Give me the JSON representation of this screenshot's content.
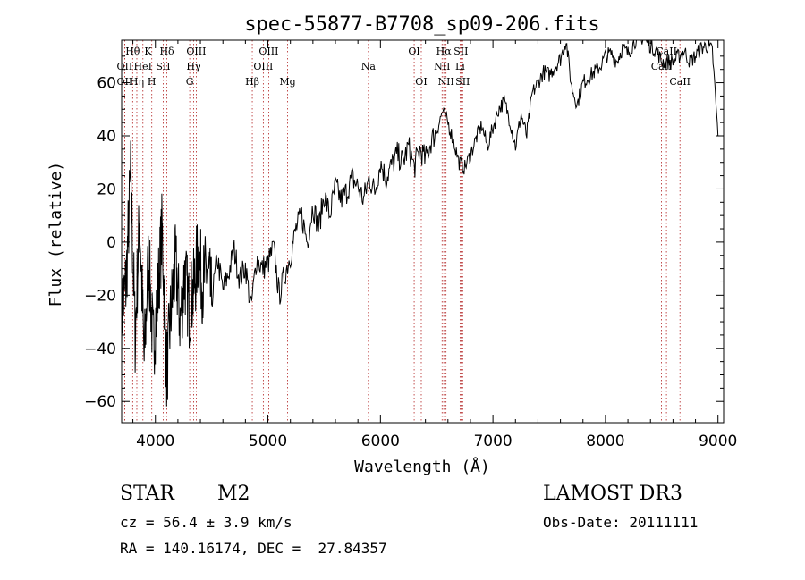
{
  "chart_data": {
    "type": "line",
    "title": "spec-55877-B7708_sp09-206.fits",
    "xlabel": "Wavelength (Å)",
    "ylabel": "Flux (relative)",
    "xlim": [
      3700,
      9050
    ],
    "ylim": [
      -68,
      76
    ],
    "x_ticks": [
      4000,
      5000,
      6000,
      7000,
      8000,
      9000
    ],
    "y_ticks": [
      -60,
      -40,
      -20,
      0,
      20,
      40,
      60
    ],
    "grid": false,
    "series": [
      {
        "name": "spectrum",
        "x": [
          3700,
          3740,
          3780,
          3820,
          3860,
          3900,
          3940,
          3980,
          4020,
          4060,
          4100,
          4140,
          4180,
          4220,
          4260,
          4300,
          4340,
          4380,
          4420,
          4460,
          4500,
          4550,
          4600,
          4650,
          4700,
          4750,
          4800,
          4850,
          4900,
          4950,
          5000,
          5050,
          5100,
          5150,
          5200,
          5250,
          5300,
          5350,
          5400,
          5450,
          5500,
          5550,
          5600,
          5650,
          5700,
          5750,
          5800,
          5850,
          5900,
          5950,
          6000,
          6050,
          6100,
          6150,
          6200,
          6250,
          6300,
          6350,
          6400,
          6450,
          6500,
          6550,
          6600,
          6650,
          6700,
          6750,
          6800,
          6850,
          6900,
          6950,
          7000,
          7050,
          7100,
          7150,
          7200,
          7250,
          7300,
          7350,
          7400,
          7450,
          7500,
          7550,
          7600,
          7650,
          7700,
          7750,
          7800,
          7850,
          7900,
          7950,
          8000,
          8050,
          8100,
          8150,
          8200,
          8250,
          8300,
          8350,
          8400,
          8450,
          8500,
          8550,
          8600,
          8650,
          8700,
          8750,
          8800,
          8850,
          8900,
          8950,
          9000
        ],
        "y": [
          -28,
          -15,
          25,
          -35,
          10,
          -45,
          -5,
          -40,
          -20,
          5,
          -50,
          -25,
          -8,
          -30,
          -12,
          -25,
          -18,
          -4,
          -16,
          -10,
          -22,
          -6,
          -18,
          -12,
          -3,
          -14,
          -9,
          -25,
          -6,
          -10,
          -8,
          -2,
          -20,
          -12,
          -5,
          5,
          10,
          0,
          14,
          5,
          18,
          10,
          21,
          16,
          19,
          24,
          21,
          16,
          24,
          19,
          30,
          24,
          29,
          33,
          30,
          36,
          28,
          35,
          31,
          38,
          42,
          49,
          45,
          38,
          30,
          28,
          33,
          39,
          44,
          36,
          43,
          50,
          53,
          46,
          36,
          48,
          40,
          56,
          60,
          64,
          63,
          66,
          69,
          76,
          58,
          52,
          60,
          62,
          64,
          66,
          70,
          71,
          68,
          73,
          71,
          75,
          78,
          76,
          74,
          72,
          68,
          68,
          68,
          70,
          72,
          68,
          70,
          73,
          74,
          72,
          40
        ]
      }
    ],
    "lines": [
      {
        "name": "Hθ",
        "x": 3798,
        "row": 0
      },
      {
        "name": "OII",
        "x": 3727,
        "row": 1
      },
      {
        "name": "OII",
        "x": 3727,
        "row": 2
      },
      {
        "name": "Hη",
        "x": 3835,
        "row": 2
      },
      {
        "name": "K",
        "x": 3934,
        "row": 0
      },
      {
        "name": "HeI",
        "x": 3889,
        "row": 1
      },
      {
        "name": "H",
        "x": 3968,
        "row": 2
      },
      {
        "name": "Hδ",
        "x": 4102,
        "row": 0
      },
      {
        "name": "SII",
        "x": 4070,
        "row": 1
      },
      {
        "name": "OIII",
        "x": 4363,
        "row": 0
      },
      {
        "name": "Hγ",
        "x": 4340,
        "row": 1
      },
      {
        "name": "G",
        "x": 4305,
        "row": 2
      },
      {
        "name": "Hβ",
        "x": 4861,
        "row": 2
      },
      {
        "name": "OIII",
        "x": 4959,
        "row": 1
      },
      {
        "name": "OIII",
        "x": 5007,
        "row": 0
      },
      {
        "name": "Mg",
        "x": 5175,
        "row": 2
      },
      {
        "name": "Na",
        "x": 5893,
        "row": 1
      },
      {
        "name": "OI",
        "x": 6300,
        "row": 0
      },
      {
        "name": "OI",
        "x": 6363,
        "row": 2
      },
      {
        "name": "Hα",
        "x": 6563,
        "row": 0
      },
      {
        "name": "NII",
        "x": 6548,
        "row": 1
      },
      {
        "name": "NII",
        "x": 6583,
        "row": 2
      },
      {
        "name": "SII",
        "x": 6716,
        "row": 0
      },
      {
        "name": "Li",
        "x": 6708,
        "row": 1
      },
      {
        "name": "SII",
        "x": 6731,
        "row": 2
      },
      {
        "name": "CaII",
        "x": 8498,
        "row": 1
      },
      {
        "name": "CaII",
        "x": 8542,
        "row": 0
      },
      {
        "name": "CaII",
        "x": 8662,
        "row": 2
      }
    ]
  },
  "info": {
    "object_class": "STAR",
    "subclass": "M2",
    "survey": "LAMOST DR3",
    "cz": "cz = 56.4 ± 3.9 km/s",
    "obs_date": "Obs-Date: 20111111",
    "radec": "RA = 140.16174, DEC =  27.84357"
  }
}
